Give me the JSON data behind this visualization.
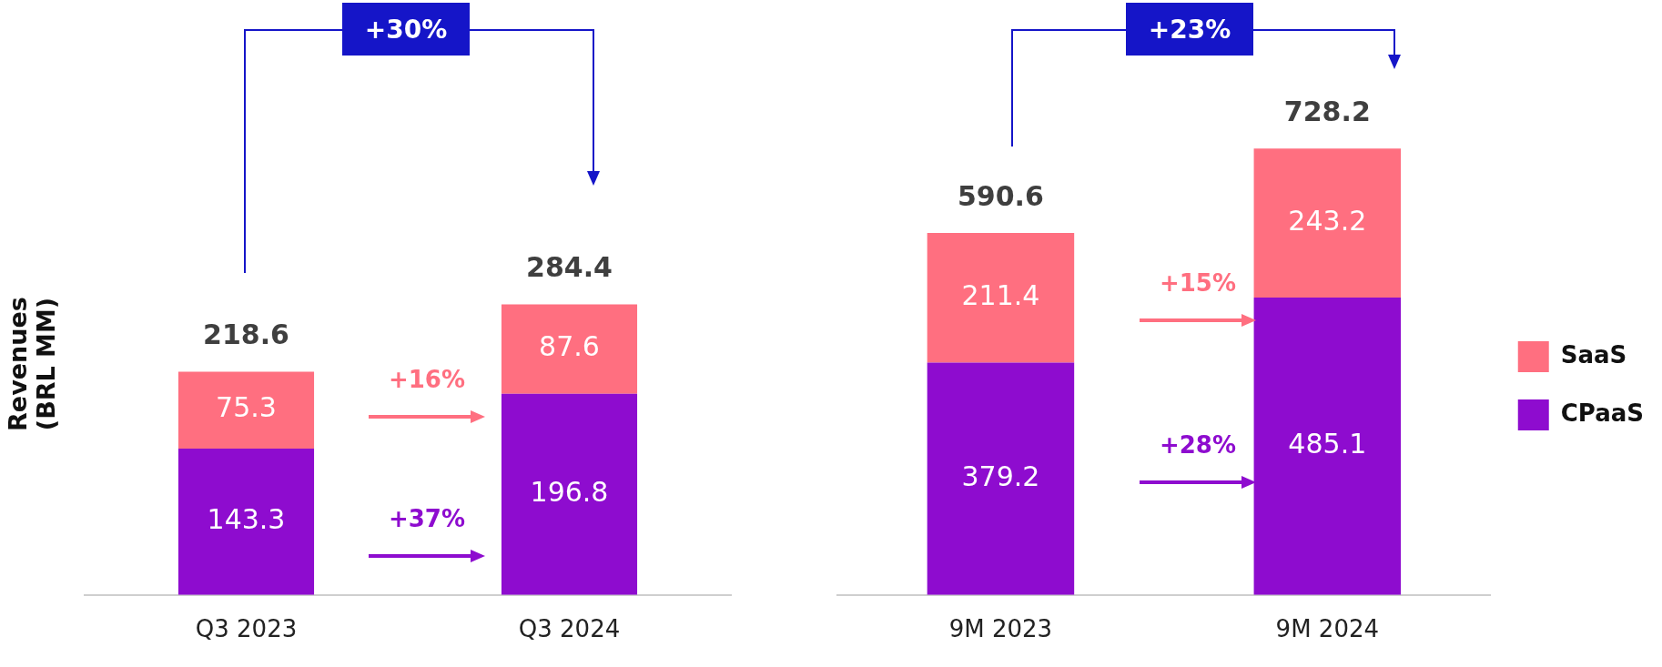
{
  "chart_data": [
    {
      "type": "bar",
      "ylabel": "Revenues (BRL MM)",
      "categories": [
        "Q3 2023",
        "Q3 2024"
      ],
      "stacked": true,
      "data_labels": true,
      "totals": [
        "218.6",
        "284.4"
      ],
      "legend": false,
      "grid": false,
      "tick_labels": "x",
      "series": [
        {
          "color": "#8e0ccf",
          "values": [
            143.3,
            196.8
          ]
        },
        {
          "color": "#ff6f80",
          "values": [
            75.3,
            87.6
          ]
        }
      ],
      "annotations": [
        "+30%",
        "+16%",
        "+37%"
      ]
    },
    {
      "type": "bar",
      "categories": [
        "9M 2023",
        "9M 2024"
      ],
      "stacked": true,
      "data_labels": true,
      "totals": [
        "590.6",
        "728.2"
      ],
      "legend": "right",
      "grid": false,
      "tick_labels": "x",
      "series": [
        {
          "name": "CPaaS",
          "color": "#8e0ccf",
          "values": [
            379.2,
            485.1
          ]
        },
        {
          "name": "SaaS",
          "color": "#ff6f80",
          "values": [
            211.4,
            243.2
          ]
        }
      ],
      "annotations": [
        "+23%",
        "+15%",
        "+28%"
      ]
    }
  ]
}
